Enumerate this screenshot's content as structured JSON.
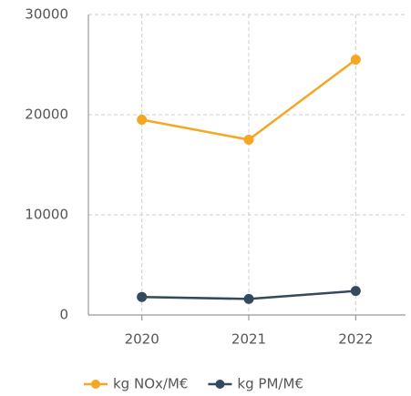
{
  "chart_data": {
    "type": "line",
    "categories": [
      "2020",
      "2021",
      "2022"
    ],
    "series": [
      {
        "name": "kg NOx/M€",
        "color": "#f5a623",
        "values": [
          19500,
          17500,
          25500
        ]
      },
      {
        "name": "kg PM/M€",
        "color": "#34495e",
        "values": [
          1800,
          1600,
          2400
        ]
      }
    ],
    "ylim": [
      0,
      30000
    ],
    "yticks": [
      0,
      10000,
      20000,
      30000
    ],
    "grid": true
  }
}
